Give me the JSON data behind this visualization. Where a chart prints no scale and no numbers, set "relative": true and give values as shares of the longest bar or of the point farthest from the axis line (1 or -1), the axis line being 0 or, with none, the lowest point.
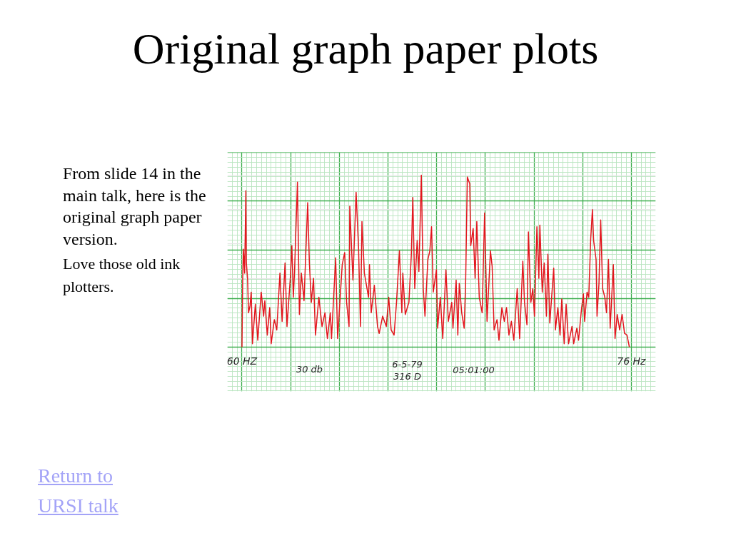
{
  "chart_data": {
    "type": "line",
    "title": "Original graph paper plots",
    "annotations": [
      "From slide 14 in the main talk, here is the original graph paper version.",
      "Love those old ink plotters.",
      "Return to URSI talk",
      "30 db",
      "6-5-79",
      "316 D",
      "05:01:00"
    ],
    "relative": true,
    "xlim": [
      59.4,
      77.0
    ],
    "xticks": [
      {
        "value": 60,
        "label": "60 HZ"
      },
      {
        "value": 62,
        "label": null
      },
      {
        "value": 64,
        "label": null
      },
      {
        "value": 66,
        "label": null
      },
      {
        "value": 68,
        "label": null
      },
      {
        "value": 70,
        "label": null
      },
      {
        "value": 72,
        "label": null
      },
      {
        "value": 74,
        "label": null
      },
      {
        "value": 76,
        "label": "76 Hz"
      }
    ],
    "grid": true,
    "line_style": "solid",
    "x": [
      60.0,
      60.03,
      60.06,
      60.11,
      60.16,
      60.18,
      60.23,
      60.27,
      60.33,
      60.38,
      60.43,
      60.55,
      60.65,
      60.79,
      60.89,
      60.94,
      61.04,
      61.14,
      61.2,
      61.33,
      61.43,
      61.56,
      61.65,
      61.77,
      61.85,
      61.99,
      62.05,
      62.11,
      62.16,
      62.28,
      62.36,
      62.44,
      62.55,
      62.7,
      62.77,
      62.85,
      62.94,
      63.02,
      63.16,
      63.29,
      63.41,
      63.51,
      63.63,
      63.68,
      63.85,
      63.93,
      64.12,
      64.22,
      64.3,
      64.4,
      64.43,
      64.56,
      64.69,
      64.79,
      64.87,
      64.93,
      65.03,
      65.2,
      65.24,
      65.31,
      65.44,
      65.57,
      65.64,
      65.78,
      65.93,
      66.03,
      66.13,
      66.25,
      66.35,
      66.47,
      66.57,
      66.61,
      66.71,
      66.86,
      66.96,
      67.02,
      67.1,
      67.2,
      67.27,
      67.37,
      67.45,
      67.52,
      67.64,
      67.72,
      67.79,
      67.86,
      67.99,
      68.04,
      68.15,
      68.25,
      68.38,
      68.48,
      68.62,
      68.67,
      68.8,
      68.87,
      68.93,
      69.03,
      69.13,
      69.19,
      69.26,
      69.36,
      69.4,
      69.5,
      69.58,
      69.65,
      69.75,
      69.87,
      69.97,
      70.07,
      70.21,
      70.28,
      70.36,
      70.48,
      70.56,
      70.68,
      70.78,
      70.87,
      70.97,
      71.07,
      71.17,
      71.31,
      71.41,
      71.54,
      71.61,
      71.71,
      71.77,
      71.87,
      71.95,
      72.02,
      72.12,
      72.2,
      72.24,
      72.34,
      72.42,
      72.51,
      72.57,
      72.65,
      72.81,
      72.88,
      72.98,
      73.07,
      73.14,
      73.24,
      73.32,
      73.42,
      73.56,
      73.63,
      73.76,
      73.83,
      73.95,
      74.03,
      74.08,
      74.18,
      74.25,
      74.33,
      74.4,
      74.45,
      74.55,
      74.59,
      74.67,
      74.74,
      74.82,
      74.91,
      74.98,
      75.06,
      75.13,
      75.26,
      75.33,
      75.42,
      75.52,
      75.62,
      75.72,
      75.82,
      75.92
    ],
    "series": [
      {
        "color": "#e3161e",
        "values": [
          0.0,
          0.4,
          0.57,
          0.43,
          0.91,
          0.49,
          0.4,
          0.2,
          0.24,
          0.32,
          0.02,
          0.25,
          0.04,
          0.32,
          0.18,
          0.27,
          0.07,
          0.23,
          0.02,
          0.16,
          0.1,
          0.43,
          0.15,
          0.49,
          0.12,
          0.41,
          0.59,
          0.29,
          0.44,
          0.96,
          0.19,
          0.43,
          0.27,
          0.84,
          0.49,
          0.26,
          0.4,
          0.07,
          0.29,
          0.12,
          0.2,
          0.05,
          0.2,
          0.05,
          0.52,
          0.05,
          0.48,
          0.55,
          0.26,
          0.12,
          0.82,
          0.39,
          0.9,
          0.58,
          0.12,
          0.73,
          0.43,
          0.29,
          0.48,
          0.2,
          0.36,
          0.12,
          0.08,
          0.18,
          0.12,
          0.29,
          0.1,
          0.07,
          0.26,
          0.56,
          0.2,
          0.43,
          0.19,
          0.26,
          0.54,
          0.87,
          0.34,
          0.62,
          0.44,
          1.0,
          0.34,
          0.18,
          0.51,
          0.56,
          0.7,
          0.32,
          0.45,
          0.11,
          0.29,
          0.05,
          0.45,
          0.15,
          0.26,
          0.11,
          0.39,
          0.07,
          0.37,
          0.2,
          0.11,
          0.37,
          0.99,
          0.95,
          0.59,
          0.69,
          0.4,
          0.73,
          0.29,
          0.2,
          0.78,
          0.15,
          0.56,
          0.47,
          0.1,
          0.16,
          0.04,
          0.23,
          0.15,
          0.23,
          0.07,
          0.15,
          0.04,
          0.34,
          0.05,
          0.5,
          0.26,
          0.13,
          0.67,
          0.26,
          0.34,
          0.18,
          0.7,
          0.4,
          0.71,
          0.32,
          0.49,
          0.18,
          0.54,
          0.14,
          0.46,
          0.1,
          0.23,
          0.07,
          0.28,
          0.02,
          0.25,
          0.02,
          0.12,
          0.02,
          0.11,
          0.04,
          0.22,
          0.31,
          0.15,
          0.32,
          0.29,
          0.63,
          0.8,
          0.62,
          0.51,
          0.18,
          0.37,
          0.74,
          0.34,
          0.29,
          0.2,
          0.51,
          0.11,
          0.48,
          0.05,
          0.19,
          0.1,
          0.19,
          0.08,
          0.07,
          0.0
        ]
      }
    ]
  }
}
